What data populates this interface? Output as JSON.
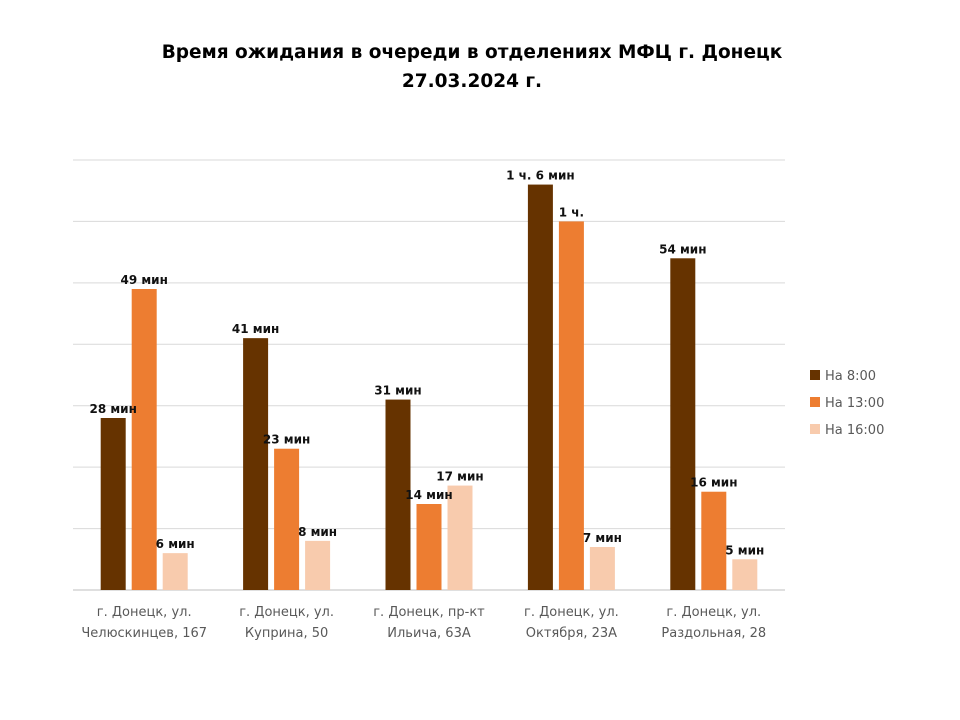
{
  "chart_data": {
    "type": "bar",
    "title": "Время ожидания в очереди в отделениях МФЦ г. Донецк",
    "subtitle": "27.03.2024 г.",
    "xlabel": "",
    "ylabel": "",
    "categories": [
      [
        "г. Донецк, ул.",
        "Челюскинцев, 167"
      ],
      [
        "г. Донецк, ул.",
        "Куприна, 50"
      ],
      [
        "г. Донецк, пр-кт",
        "Ильича, 63А"
      ],
      [
        "г. Донецк, ул.",
        "Октября, 23А"
      ],
      [
        "г. Донецк, ул.",
        "Раздольная, 28"
      ]
    ],
    "series": [
      {
        "name": "На 8:00",
        "color": "#663300",
        "values": [
          28,
          41,
          31,
          66,
          54
        ],
        "labels": [
          "28 мин",
          "41 мин",
          "31 мин",
          "1 ч. 6 мин",
          "54 мин"
        ]
      },
      {
        "name": "На 13:00",
        "color": "#ed7d31",
        "values": [
          49,
          23,
          14,
          60,
          16
        ],
        "labels": [
          "49 мин",
          "23 мин",
          "14 мин",
          "1 ч.",
          "16 мин"
        ]
      },
      {
        "name": "На 16:00",
        "color": "#f8cbad",
        "values": [
          6,
          8,
          17,
          7,
          5
        ],
        "labels": [
          "6 мин",
          "8 мин",
          "17 мин",
          "7 мин",
          "5 мин"
        ]
      }
    ],
    "ylim": [
      0,
      70
    ],
    "ytick_step": 10,
    "grid": true,
    "legend": "right",
    "unit": "минуты"
  }
}
